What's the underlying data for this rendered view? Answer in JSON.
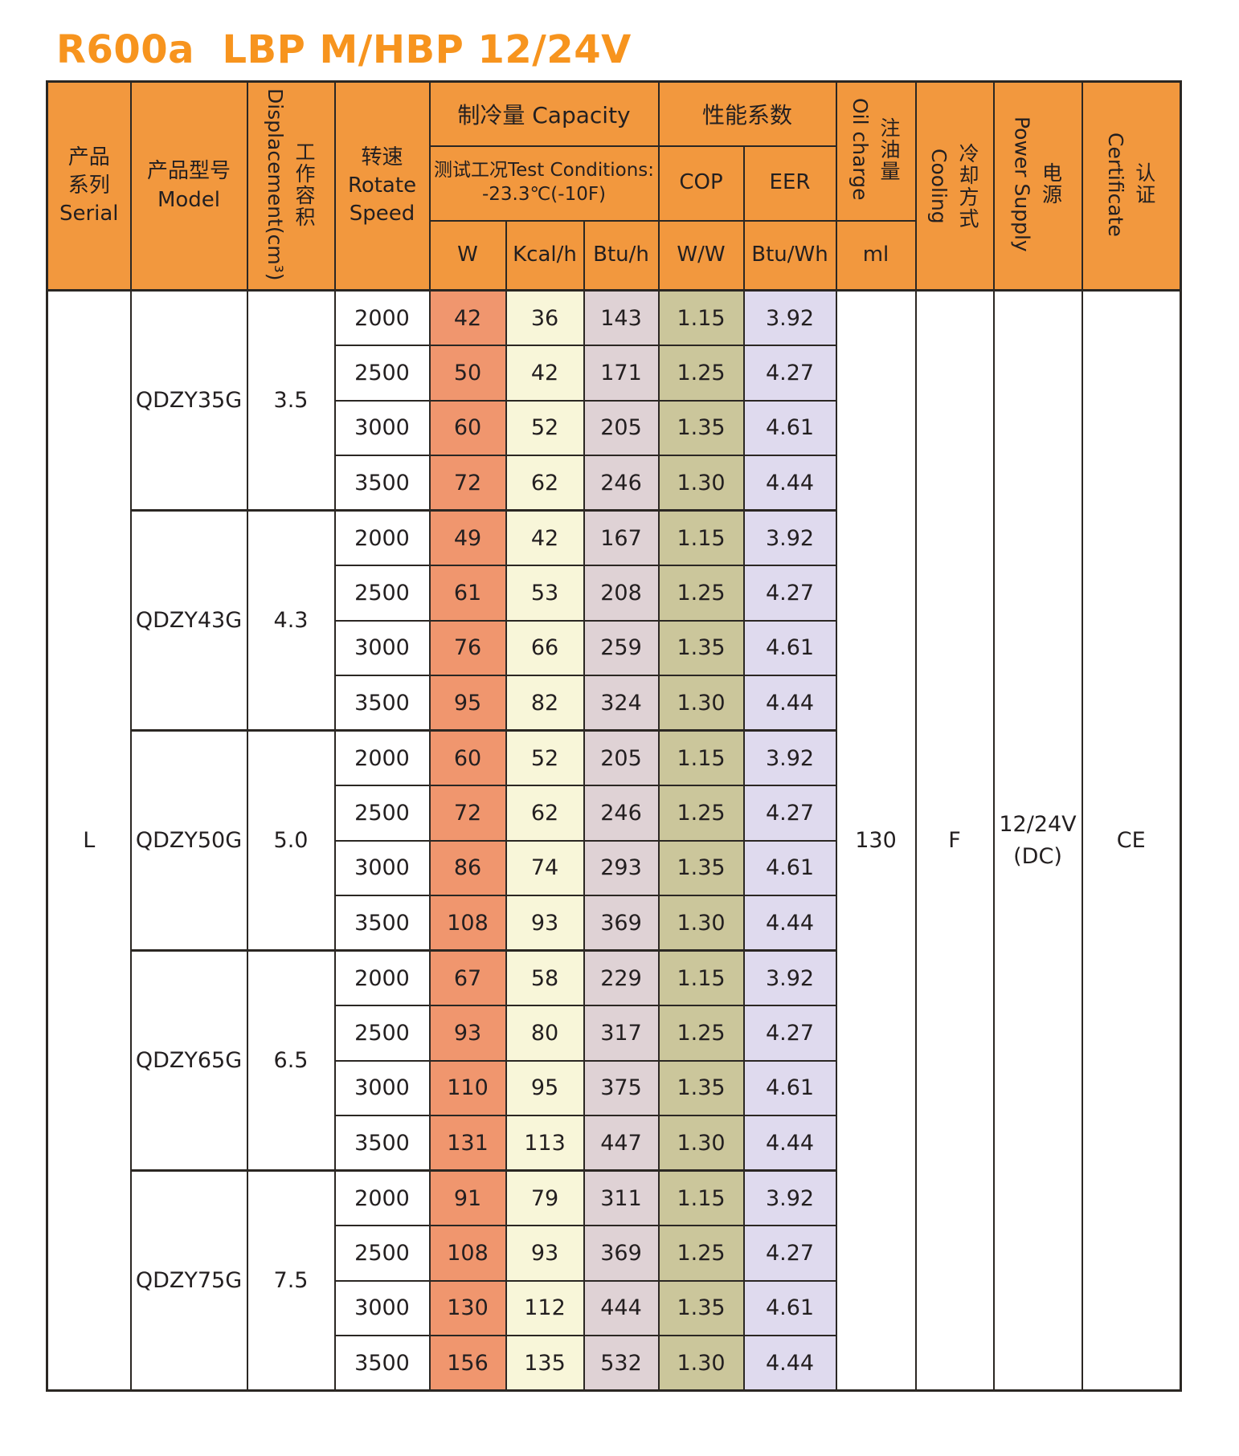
{
  "title": "R600a  LBP M/HBP 12/24V",
  "colors": {
    "title": "#F7941E",
    "header_bg": "#F2983E",
    "border": "#2B2723",
    "text": "#231F20",
    "w_col": "#F0966E",
    "kcal_col": "#F8F6D9",
    "btu_col": "#DFD2D5",
    "cop_col": "#CBC69B",
    "eer_col": "#DFDAEE"
  },
  "table": {
    "header": {
      "serial_lines": [
        "产品",
        "系列",
        "Serial"
      ],
      "model_lines": [
        "产品型号",
        "Model"
      ],
      "displacement_zh": "工作容积",
      "displacement_en": "Displacement(cm³)",
      "speed_lines": [
        "转速",
        "Rotate",
        "Speed"
      ],
      "capacity": "制冷量 Capacity",
      "test_conditions_lines": [
        "测试工况Test Conditions:",
        "-23.3℃(-10F)"
      ],
      "performance": "性能系数",
      "cop": "COP",
      "eer": "EER",
      "unit_w": "W",
      "unit_kcal": "Kcal/h",
      "unit_btu": "Btu/h",
      "unit_ww": "W/W",
      "unit_btuwh": "Btu/Wh",
      "unit_ml": "ml",
      "oil_zh": "注油量",
      "oil_en": "Oil charge",
      "cooling_zh": "冷却方式",
      "cooling_en": "Cooling",
      "power_zh": "电源",
      "power_en": "Power Supply",
      "cert_zh": "认证",
      "cert_en": "Certificate"
    },
    "serial": "L",
    "oil_charge": "130",
    "cooling": "F",
    "power_supply": [
      "12/24V",
      "(DC)"
    ],
    "certificate": "CE",
    "groups": [
      {
        "model": "QDZY35G",
        "displacement": "3.5",
        "rows": [
          {
            "speed": "2000",
            "w": "42",
            "kcal": "36",
            "btu": "143",
            "cop": "1.15",
            "eer": "3.92"
          },
          {
            "speed": "2500",
            "w": "50",
            "kcal": "42",
            "btu": "171",
            "cop": "1.25",
            "eer": "4.27"
          },
          {
            "speed": "3000",
            "w": "60",
            "kcal": "52",
            "btu": "205",
            "cop": "1.35",
            "eer": "4.61"
          },
          {
            "speed": "3500",
            "w": "72",
            "kcal": "62",
            "btu": "246",
            "cop": "1.30",
            "eer": "4.44"
          }
        ]
      },
      {
        "model": "QDZY43G",
        "displacement": "4.3",
        "rows": [
          {
            "speed": "2000",
            "w": "49",
            "kcal": "42",
            "btu": "167",
            "cop": "1.15",
            "eer": "3.92"
          },
          {
            "speed": "2500",
            "w": "61",
            "kcal": "53",
            "btu": "208",
            "cop": "1.25",
            "eer": "4.27"
          },
          {
            "speed": "3000",
            "w": "76",
            "kcal": "66",
            "btu": "259",
            "cop": "1.35",
            "eer": "4.61"
          },
          {
            "speed": "3500",
            "w": "95",
            "kcal": "82",
            "btu": "324",
            "cop": "1.30",
            "eer": "4.44"
          }
        ]
      },
      {
        "model": "QDZY50G",
        "displacement": "5.0",
        "rows": [
          {
            "speed": "2000",
            "w": "60",
            "kcal": "52",
            "btu": "205",
            "cop": "1.15",
            "eer": "3.92"
          },
          {
            "speed": "2500",
            "w": "72",
            "kcal": "62",
            "btu": "246",
            "cop": "1.25",
            "eer": "4.27"
          },
          {
            "speed": "3000",
            "w": "86",
            "kcal": "74",
            "btu": "293",
            "cop": "1.35",
            "eer": "4.61"
          },
          {
            "speed": "3500",
            "w": "108",
            "kcal": "93",
            "btu": "369",
            "cop": "1.30",
            "eer": "4.44"
          }
        ]
      },
      {
        "model": "QDZY65G",
        "displacement": "6.5",
        "rows": [
          {
            "speed": "2000",
            "w": "67",
            "kcal": "58",
            "btu": "229",
            "cop": "1.15",
            "eer": "3.92"
          },
          {
            "speed": "2500",
            "w": "93",
            "kcal": "80",
            "btu": "317",
            "cop": "1.25",
            "eer": "4.27"
          },
          {
            "speed": "3000",
            "w": "110",
            "kcal": "95",
            "btu": "375",
            "cop": "1.35",
            "eer": "4.61"
          },
          {
            "speed": "3500",
            "w": "131",
            "kcal": "113",
            "btu": "447",
            "cop": "1.30",
            "eer": "4.44"
          }
        ]
      },
      {
        "model": "QDZY75G",
        "displacement": "7.5",
        "rows": [
          {
            "speed": "2000",
            "w": "91",
            "kcal": "79",
            "btu": "311",
            "cop": "1.15",
            "eer": "3.92"
          },
          {
            "speed": "2500",
            "w": "108",
            "kcal": "93",
            "btu": "369",
            "cop": "1.25",
            "eer": "4.27"
          },
          {
            "speed": "3000",
            "w": "130",
            "kcal": "112",
            "btu": "444",
            "cop": "1.35",
            "eer": "4.61"
          },
          {
            "speed": "3500",
            "w": "156",
            "kcal": "135",
            "btu": "532",
            "cop": "1.30",
            "eer": "4.44"
          }
        ]
      }
    ]
  }
}
